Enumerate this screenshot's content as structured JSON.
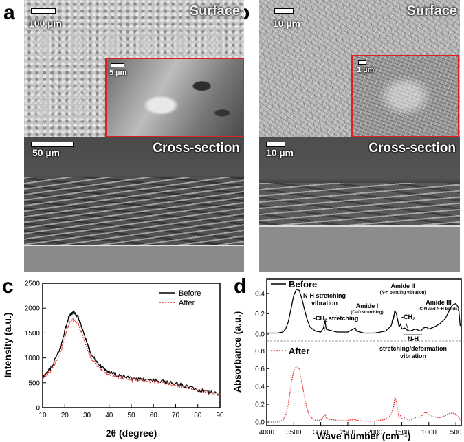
{
  "panels": {
    "a": {
      "label": "a",
      "surface": {
        "title": "Surface",
        "scale": "100 µm",
        "inset_scale": "5 µm"
      },
      "cross": {
        "title": "Cross-section",
        "scale": "50 µm"
      }
    },
    "b": {
      "label": "b",
      "surface": {
        "title": "Surface",
        "scale": "10 µm",
        "inset_scale": "1 µm"
      },
      "cross": {
        "title": "Cross-section",
        "scale": "10 µm"
      }
    },
    "c": {
      "label": "c"
    },
    "d": {
      "label": "d"
    }
  },
  "chart_data": [
    {
      "type": "line",
      "panel": "c",
      "xlabel": "2θ (degree)",
      "ylabel": "Intensity (a.u.)",
      "xlim": [
        10,
        90
      ],
      "ylim": [
        0,
        2500
      ],
      "xticks": [
        "10",
        "20",
        "30",
        "40",
        "50",
        "60",
        "70",
        "80",
        "90"
      ],
      "yticks": [
        "0",
        "500",
        "1000",
        "1500",
        "2000",
        "2500"
      ],
      "legend_position": "top-right",
      "series": [
        {
          "name": "Before",
          "color": "#000000",
          "style": "solid",
          "x": [
            10,
            14,
            18,
            20,
            22,
            24,
            26,
            28,
            30,
            32,
            35,
            38,
            40,
            45,
            50,
            55,
            60,
            65,
            70,
            75,
            80,
            85,
            90
          ],
          "y": [
            620,
            800,
            1200,
            1550,
            1850,
            1920,
            1820,
            1580,
            1300,
            1080,
            880,
            760,
            710,
            640,
            590,
            560,
            540,
            520,
            480,
            420,
            360,
            310,
            270
          ]
        },
        {
          "name": "After",
          "color": "#e03030",
          "style": "dotted",
          "x": [
            10,
            14,
            18,
            20,
            22,
            24,
            26,
            28,
            30,
            32,
            35,
            38,
            40,
            45,
            50,
            55,
            60,
            65,
            70,
            75,
            80,
            85,
            90
          ],
          "y": [
            580,
            740,
            1100,
            1420,
            1700,
            1770,
            1680,
            1460,
            1200,
            990,
            810,
            700,
            660,
            600,
            560,
            540,
            520,
            500,
            460,
            400,
            350,
            300,
            260
          ]
        }
      ]
    },
    {
      "type": "line",
      "panel": "d",
      "xlabel": "Wave number (cm⁻¹)",
      "ylabel": "Absorbance (a.u.)",
      "xlim": [
        4000,
        400
      ],
      "xticks": [
        "4000",
        "3500",
        "3000",
        "2500",
        "2000",
        "1500",
        "1000",
        "500"
      ],
      "yticks_top": [
        "0.0",
        "0.2",
        "0.4"
      ],
      "yticks_bottom": [
        "0.0",
        "0.2",
        "0.4",
        "0.6",
        "0.8"
      ],
      "ylim_top": [
        0,
        0.5
      ],
      "ylim_bottom": [
        0,
        0.85
      ],
      "series": [
        {
          "name": "Before",
          "color": "#000000",
          "style": "solid",
          "x": [
            4000,
            3900,
            3800,
            3700,
            3650,
            3600,
            3550,
            3500,
            3450,
            3400,
            3350,
            3300,
            3250,
            3200,
            3100,
            3000,
            2950,
            2920,
            2900,
            2850,
            2700,
            2500,
            2360,
            2340,
            2200,
            2000,
            1800,
            1700,
            1650,
            1630,
            1600,
            1550,
            1520,
            1500,
            1450,
            1400,
            1350,
            1300,
            1250,
            1200,
            1150,
            1100,
            1050,
            1000,
            900,
            800,
            700,
            650,
            600,
            550,
            500,
            450,
            420
          ],
          "y": [
            0.01,
            0.01,
            0.01,
            0.02,
            0.05,
            0.12,
            0.25,
            0.38,
            0.44,
            0.43,
            0.35,
            0.24,
            0.14,
            0.07,
            0.03,
            0.02,
            0.06,
            0.13,
            0.05,
            0.04,
            0.02,
            0.02,
            0.06,
            0.03,
            0.01,
            0.01,
            0.03,
            0.08,
            0.16,
            0.23,
            0.2,
            0.07,
            0.1,
            0.05,
            0.06,
            0.04,
            0.03,
            0.04,
            0.05,
            0.04,
            0.03,
            0.06,
            0.07,
            0.05,
            0.07,
            0.1,
            0.15,
            0.2,
            0.26,
            0.29,
            0.3,
            0.26,
            0.08
          ]
        },
        {
          "name": "After",
          "color": "#e03030",
          "style": "dotted",
          "x": [
            4000,
            3900,
            3800,
            3700,
            3650,
            3600,
            3550,
            3500,
            3450,
            3400,
            3350,
            3300,
            3250,
            3200,
            3100,
            3000,
            2950,
            2920,
            2900,
            2850,
            2700,
            2500,
            2360,
            2340,
            2200,
            2000,
            1800,
            1700,
            1650,
            1630,
            1600,
            1550,
            1520,
            1500,
            1450,
            1400,
            1350,
            1300,
            1250,
            1200,
            1150,
            1100,
            1050,
            1000,
            900,
            800,
            700,
            650,
            600,
            550,
            500,
            450,
            420
          ],
          "y": [
            0.0,
            0.0,
            0.0,
            0.02,
            0.08,
            0.2,
            0.42,
            0.58,
            0.63,
            0.6,
            0.45,
            0.28,
            0.14,
            0.06,
            0.02,
            0.02,
            0.06,
            0.09,
            0.05,
            0.03,
            0.02,
            0.02,
            0.03,
            0.02,
            0.01,
            0.01,
            0.03,
            0.08,
            0.18,
            0.28,
            0.22,
            0.05,
            0.08,
            0.03,
            0.05,
            0.03,
            0.02,
            0.03,
            0.05,
            0.06,
            0.05,
            0.1,
            0.11,
            0.08,
            0.06,
            0.05,
            0.07,
            0.09,
            0.1,
            0.1,
            0.09,
            0.06,
            0.02
          ]
        }
      ],
      "legend": [
        {
          "name": "Before",
          "position": "top-left"
        },
        {
          "name": "After",
          "position": "bottom-left"
        }
      ],
      "annotations": [
        {
          "text_1": "N-H stretching",
          "text_2": "vibration"
        },
        {
          "text": "-CH",
          "sub": "2",
          "suffix": " stretching"
        },
        {
          "text": "Amide I",
          "detail": "(C=O stretching)"
        },
        {
          "text": "Amide II",
          "detail": "(N-H bending vibration)"
        },
        {
          "text": "-CH",
          "sub": "2",
          "suffix": ""
        },
        {
          "text": "Amide III",
          "detail": "(C-N and N-H bonds)"
        },
        {
          "text_1": "N-H",
          "text_2": "stretching/deformation",
          "text_3": "vibration"
        }
      ]
    }
  ]
}
